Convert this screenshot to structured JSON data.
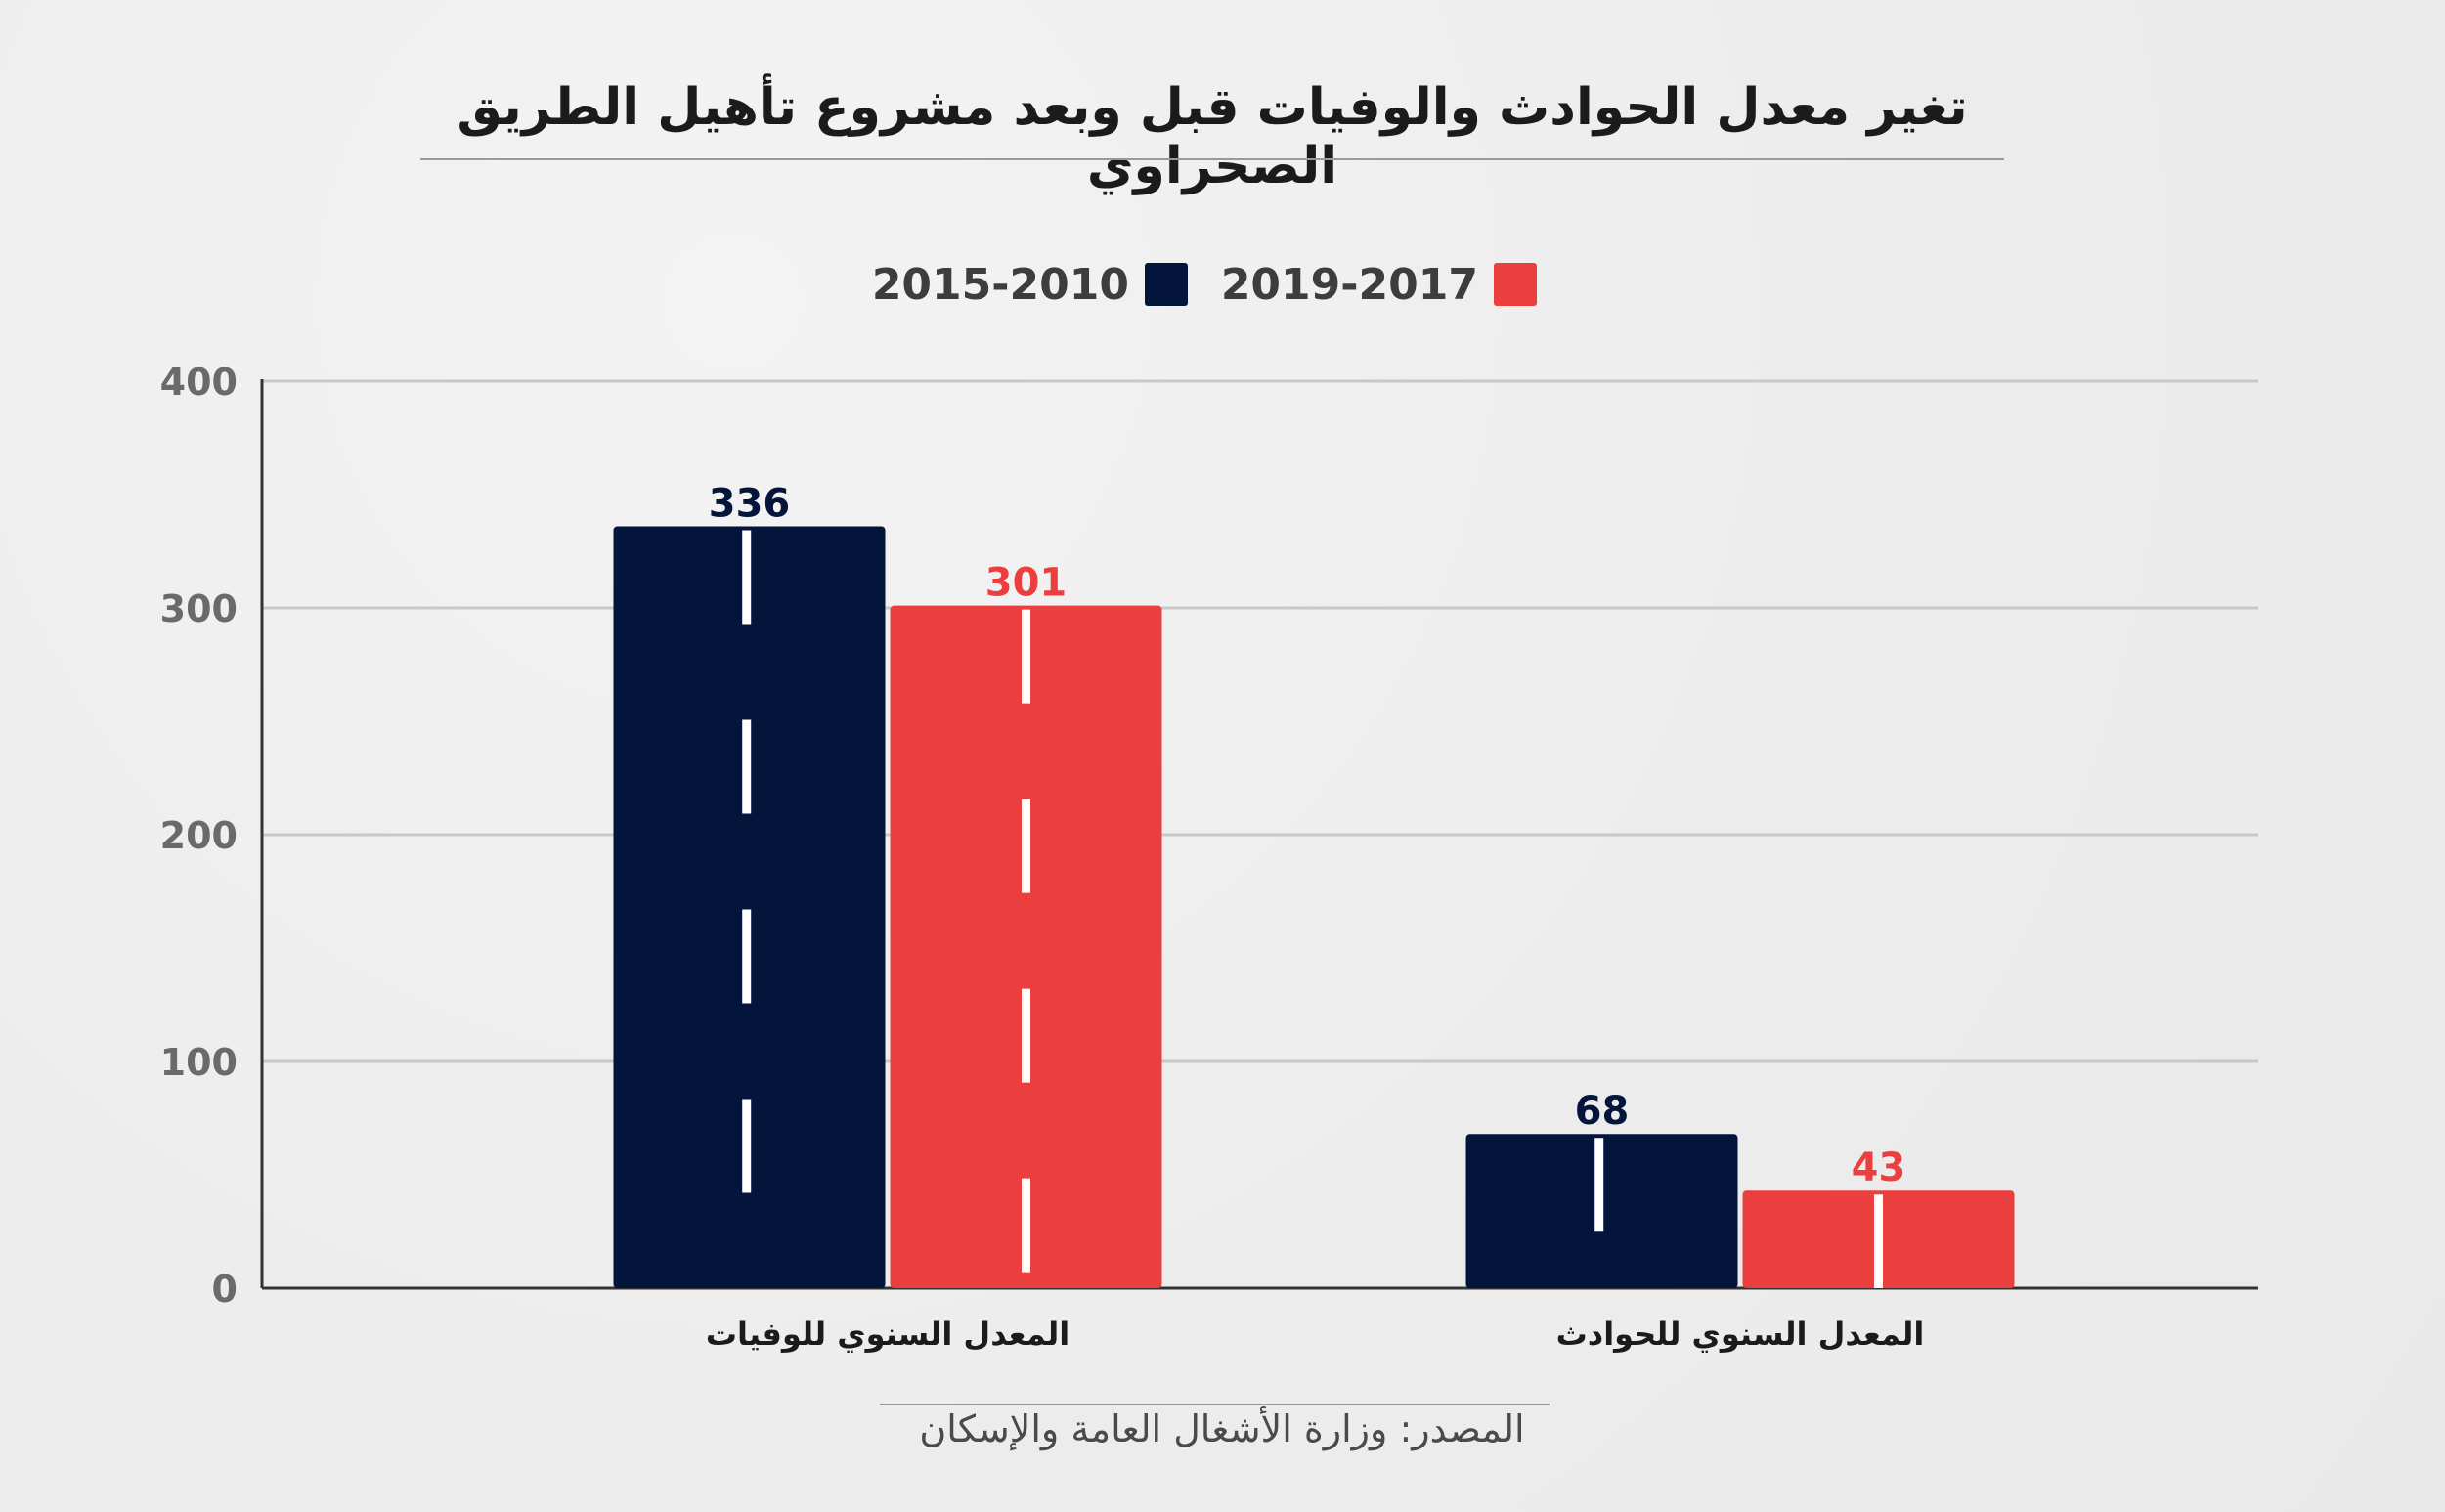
{
  "chart_data": {
    "type": "bar",
    "title": "تغير معدل الحوادث والوفيات قبل وبعد مشروع تأهيل الطريق الصحراوي",
    "categories": [
      "المعدل السنوي للوفيات",
      "المعدل السنوي للحوادث"
    ],
    "series": [
      {
        "name": "2015-2010",
        "values": [
          336,
          68
        ],
        "color": "#03153a"
      },
      {
        "name": "2019-2017",
        "values": [
          301,
          43
        ],
        "color": "#ea3f3e"
      }
    ],
    "ylim": [
      0,
      400
    ],
    "yticks": [
      "0",
      "100",
      "200",
      "300",
      "400"
    ],
    "grid": true,
    "legend_position": "top-center",
    "source": "المصدر: وزارة الأشغال العامة والإسكان"
  },
  "colors": {
    "background": "#efefef",
    "gridline": "#c8c8c8",
    "axis": "#333333",
    "lane_marking": "#ffffff"
  }
}
